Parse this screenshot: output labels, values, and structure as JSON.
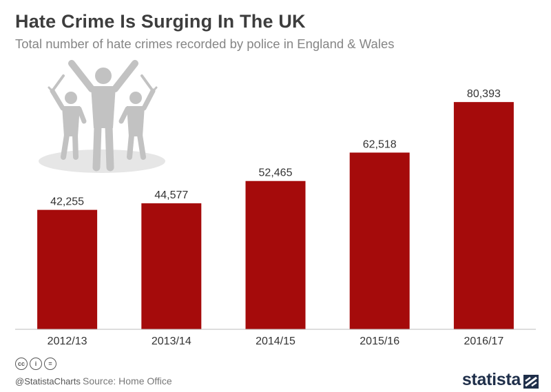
{
  "header": {
    "title": "Hate Crime Is Surging In The UK",
    "subtitle": "Total number of hate crimes recorded by police in England & Wales"
  },
  "chart_data": {
    "type": "bar",
    "title": "Hate Crime Is Surging In The UK",
    "subtitle": "Total number of hate crimes recorded by police in England & Wales",
    "categories": [
      "2012/13",
      "2013/14",
      "2014/15",
      "2015/16",
      "2016/17"
    ],
    "values": [
      42255,
      44577,
      52465,
      62518,
      80393
    ],
    "value_labels": [
      "42,255",
      "44,577",
      "52,465",
      "62,518",
      "80,393"
    ],
    "xlabel": "",
    "ylabel": "",
    "ylim": [
      0,
      97000
    ],
    "grid": false,
    "y_axis_shown": false,
    "colors": {
      "bar": "#a50b0b",
      "baseline": "#bbbbbb",
      "figures": "#c2c2c2",
      "shadow": "#e6e6e6"
    }
  },
  "footer": {
    "cc_icons": [
      {
        "icon": "cc-icon",
        "text": "cc"
      },
      {
        "icon": "attribution-icon",
        "text": "i"
      },
      {
        "icon": "no-derivatives-icon",
        "text": "="
      }
    ],
    "handle": "@StatistaCharts",
    "source": "Source: Home Office",
    "brand": "statista"
  }
}
